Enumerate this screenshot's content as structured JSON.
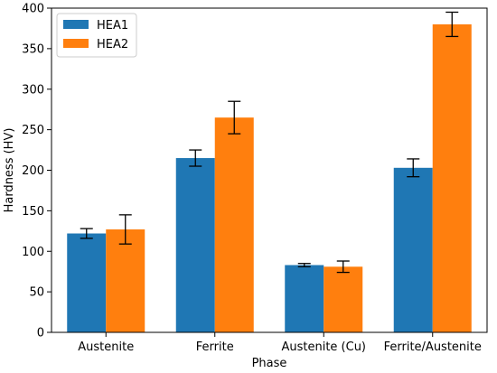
{
  "chart_data": {
    "type": "bar",
    "title": "",
    "xlabel": "Phase",
    "ylabel": "Hardness (HV)",
    "categories": [
      "Austenite",
      "Ferrite",
      "Austenite (Cu)",
      "Ferrite/Austenite"
    ],
    "ylim": [
      0,
      400
    ],
    "yticks": [
      0,
      50,
      100,
      150,
      200,
      250,
      300,
      350,
      400
    ],
    "legend_position": "top-left",
    "grid": false,
    "series": [
      {
        "name": "HEA1",
        "color": "#1f77b4",
        "values": [
          122,
          215,
          83,
          203
        ],
        "errors": [
          6,
          10,
          2,
          11
        ]
      },
      {
        "name": "HEA2",
        "color": "#ff7f0e",
        "values": [
          127,
          265,
          81,
          380
        ],
        "errors": [
          18,
          20,
          7,
          15
        ]
      }
    ]
  }
}
